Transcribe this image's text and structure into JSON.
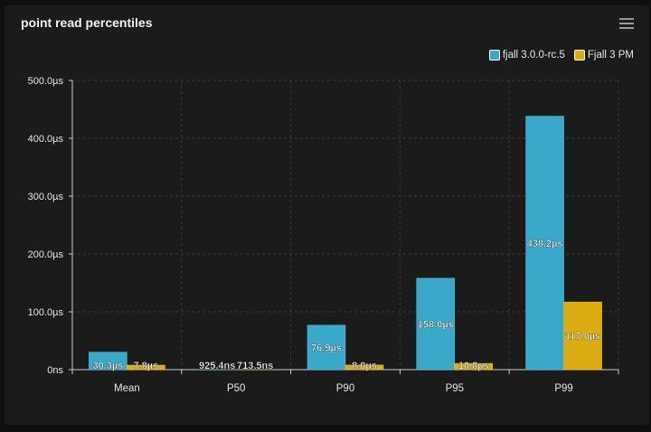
{
  "panel": {
    "title": "point read percentiles",
    "menu_icon": "hamburger-menu-icon"
  },
  "colors": {
    "series1": "#3aa8c8",
    "series2": "#dcad12",
    "grid": "#3a3a3a",
    "axis": "#cfcfcf",
    "text": "#e6e6e6"
  },
  "chart_data": {
    "type": "bar",
    "title": "point read percentiles",
    "xlabel": "",
    "ylabel": "",
    "categories": [
      "Mean",
      "P50",
      "P90",
      "P95",
      "P99"
    ],
    "series": [
      {
        "name": "fjall 3.0.0-rc.5",
        "values": [
          30.3,
          0.9254,
          76.9,
          158.0,
          438.2
        ],
        "labels": [
          "30.3µs",
          "925.4ns",
          "76.9µs",
          "158.0µs",
          "438.2µs"
        ]
      },
      {
        "name": "Fjall 3 PM",
        "values": [
          7.8,
          0.7135,
          8.0,
          10.8,
          117.0
        ],
        "labels": [
          "7.8µs",
          "713.5ns",
          "8.0µs",
          "10.8µs",
          "117.0µs"
        ]
      }
    ],
    "ylim": [
      0,
      500
    ],
    "y_unit": "µs",
    "yticks": [
      0,
      100,
      200,
      300,
      400,
      500
    ],
    "ytick_labels": [
      "0ns",
      "100.0µs",
      "200.0µs",
      "300.0µs",
      "400.0µs",
      "500.0µs"
    ],
    "grid": true,
    "legend_position": "top-right"
  }
}
